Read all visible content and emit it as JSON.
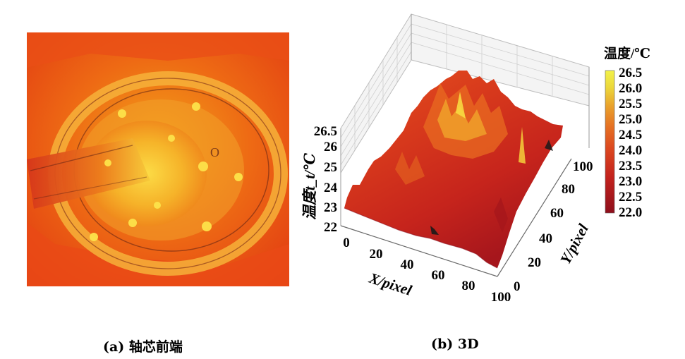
{
  "figure": {
    "panel_a": {
      "caption": "(a) 轴芯前端"
    },
    "panel_b": {
      "caption": "(b) 3D"
    }
  },
  "colorbar": {
    "title": "温度/℃",
    "labels": [
      "26.5",
      "26.0",
      "25.5",
      "25.0",
      "24.5",
      "24.0",
      "23.5",
      "23.0",
      "22.5",
      "22.0"
    ],
    "colors": [
      "#f2f24a",
      "#ecd73b",
      "#e9b730",
      "#e8932a",
      "#e56f23",
      "#df4e1f",
      "#d3321d",
      "#bf201e",
      "#a7161d",
      "#8e0f1c"
    ]
  },
  "chart_data": [
    {
      "type": "image",
      "title": "",
      "caption": "(a) 轴芯前端"
    },
    {
      "type": "surface3d",
      "caption": "(b) 3D",
      "xlabel": "X/pixel",
      "ylabel": "Y/pixel",
      "zlabel": "温度t_t/℃",
      "xlim": [
        0,
        100
      ],
      "ylim": [
        0,
        100
      ],
      "zlim": [
        22,
        26.5
      ],
      "xticks": [
        "0",
        "20",
        "40",
        "60",
        "80",
        "100"
      ],
      "yticks": [
        "0",
        "20",
        "40",
        "60",
        "80",
        "100"
      ],
      "zticks": [
        "22",
        "23",
        "24",
        "25",
        "26",
        "26.5"
      ],
      "colorbar_range": [
        22.0,
        26.5
      ],
      "grid": true
    }
  ]
}
